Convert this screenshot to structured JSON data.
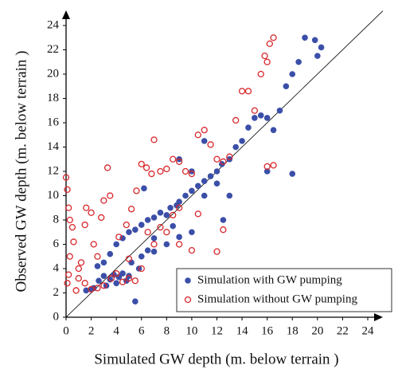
{
  "chart_data": {
    "type": "scatter",
    "x_label": "Simulated GW depth (m. below terrain )",
    "y_label": "Observed GW depth (m. below terrain )",
    "xlim": [
      0,
      24
    ],
    "ylim": [
      0,
      24
    ],
    "xticks": [
      0,
      2,
      4,
      6,
      8,
      10,
      12,
      14,
      16,
      18,
      20,
      22,
      24
    ],
    "yticks": [
      0,
      2,
      4,
      6,
      8,
      10,
      12,
      14,
      16,
      18,
      20,
      22,
      24
    ],
    "grid": false,
    "legend": "lower right",
    "identity_line": true,
    "series": [
      {
        "name": "Simulation with GW pumping",
        "color": "#3b4fa8",
        "marker": "filled",
        "x": [
          1.6,
          2.2,
          2.6,
          3,
          3.2,
          3.5,
          3.8,
          4,
          4.2,
          4.5,
          4.8,
          5,
          5.5,
          5.2,
          3.5,
          4,
          4.5,
          5,
          5.5,
          6,
          6.5,
          7,
          7.5,
          8,
          8.3,
          8.8,
          9,
          9.5,
          10,
          10.5,
          11,
          11.5,
          12,
          12.4,
          13,
          13.5,
          14,
          14.5,
          15,
          15.5,
          16,
          16.5,
          17,
          17.5,
          18,
          18.5,
          19,
          19.8,
          20.3,
          20,
          18,
          6,
          7,
          8,
          9,
          10,
          6.2,
          9,
          10,
          12.5,
          13,
          7,
          8.5,
          11,
          12,
          3,
          2.5,
          2,
          5.8,
          6.5,
          16,
          11
        ],
        "values": [
          2.2,
          2.4,
          3,
          3.4,
          2.6,
          3.1,
          3.5,
          2.8,
          3.3,
          3.6,
          3,
          3.4,
          1.3,
          4.5,
          5.2,
          6,
          6.5,
          7,
          7.2,
          7.6,
          8,
          8.2,
          8.6,
          8.4,
          9,
          9.2,
          9.5,
          10,
          10.4,
          10.8,
          11.2,
          11.6,
          12,
          12.6,
          13,
          14,
          14.5,
          15.6,
          16.4,
          16.6,
          16.4,
          15.4,
          17,
          19,
          20,
          21,
          23,
          22.8,
          22.2,
          21.5,
          11.8,
          5,
          5.4,
          6,
          6.6,
          7,
          10.6,
          13,
          12,
          8,
          10,
          6.5,
          7.5,
          10,
          11,
          4.5,
          4.2,
          2.3,
          4,
          5.5,
          12,
          14.5
        ]
      },
      {
        "name": "Simulation without GW pumping",
        "color": "#d7262b",
        "marker": "hollow",
        "x": [
          0,
          0.1,
          0.2,
          0.3,
          0.5,
          0.6,
          0.3,
          0.2,
          0.1,
          0.8,
          1,
          1.2,
          1.5,
          1.6,
          2,
          2.2,
          2.5,
          2.8,
          3,
          3.3,
          3.5,
          2.5,
          3,
          3.6,
          4,
          4.5,
          5,
          5.5,
          4.2,
          4.8,
          5.2,
          5.6,
          6,
          6.4,
          6.8,
          7,
          7.5,
          8,
          8.5,
          9,
          9.5,
          10,
          10.5,
          11,
          11.5,
          12,
          12.5,
          13,
          13.5,
          14,
          14.5,
          15,
          15.5,
          16,
          16.5,
          16.2,
          15.8,
          16,
          16.5,
          7,
          8,
          9,
          10,
          12,
          6,
          6.5,
          7.5,
          8.5,
          9,
          10.5,
          12.5,
          5,
          2,
          1,
          1.5
        ],
        "values": [
          11.5,
          10.5,
          9,
          8,
          7.4,
          6.2,
          5,
          3.5,
          2.8,
          2.2,
          3.2,
          4.5,
          7.6,
          9,
          8.6,
          6,
          5,
          8.2,
          9.6,
          12.3,
          10,
          2.4,
          2.6,
          3.2,
          3.6,
          2.9,
          3.2,
          3,
          6.6,
          7.6,
          8.9,
          10.4,
          12.6,
          12.3,
          11.8,
          14.6,
          12,
          12.2,
          13,
          12.8,
          12,
          11.8,
          15,
          15.4,
          14.2,
          13,
          12.8,
          13.2,
          16.2,
          18.6,
          18.6,
          17,
          20,
          21,
          23,
          22.5,
          21.5,
          12.4,
          12.5,
          6,
          7,
          6,
          5.5,
          5.4,
          4,
          7,
          7.4,
          8.4,
          9,
          8.5,
          7.2,
          4.8,
          2.3,
          4,
          2.8
        ]
      }
    ]
  }
}
